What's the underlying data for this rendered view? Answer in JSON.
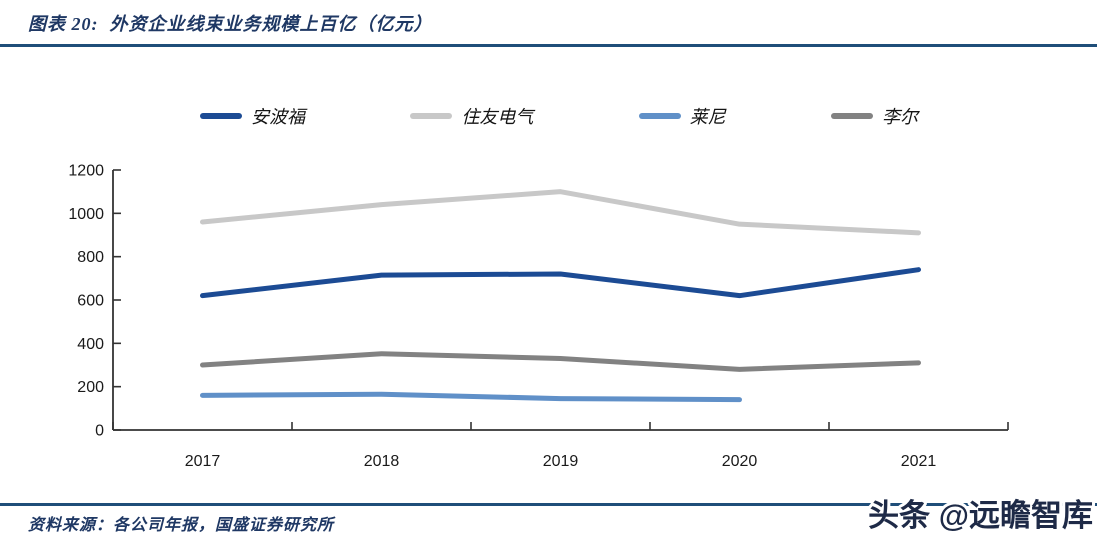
{
  "title": "图表 20:  外资企业线束业务规模上百亿（亿元）",
  "source": "资料来源：各公司年报，国盛证券研究所",
  "watermark": "头条 @远瞻智库",
  "colors": {
    "title_text": "#1f3864",
    "divider": "#1f4e79",
    "axis": "#333333",
    "tick_label": "#1a1a1a",
    "watermark_fill": "#1e2a47",
    "watermark_stroke": "#ffffff"
  },
  "chart_data": {
    "type": "line",
    "categories": [
      "2017",
      "2018",
      "2019",
      "2020",
      "2021"
    ],
    "series": [
      {
        "name": "安波福",
        "color": "#1c4b94",
        "values": [
          620,
          715,
          720,
          620,
          740
        ]
      },
      {
        "name": "住友电气",
        "color": "#c8c8c8",
        "values": [
          960,
          1040,
          1100,
          950,
          910
        ]
      },
      {
        "name": "莱尼",
        "color": "#6090c8",
        "values": [
          160,
          165,
          145,
          140,
          null
        ]
      },
      {
        "name": "李尔",
        "color": "#828282",
        "values": [
          300,
          352,
          330,
          280,
          310
        ]
      }
    ],
    "title": "外资企业线束业务规模上百亿（亿元）",
    "xlabel": "",
    "ylabel": "",
    "ylim": [
      0,
      1200
    ],
    "yticks": [
      0,
      200,
      400,
      600,
      800,
      1000,
      1200
    ],
    "grid": false,
    "legend_position": "top"
  }
}
